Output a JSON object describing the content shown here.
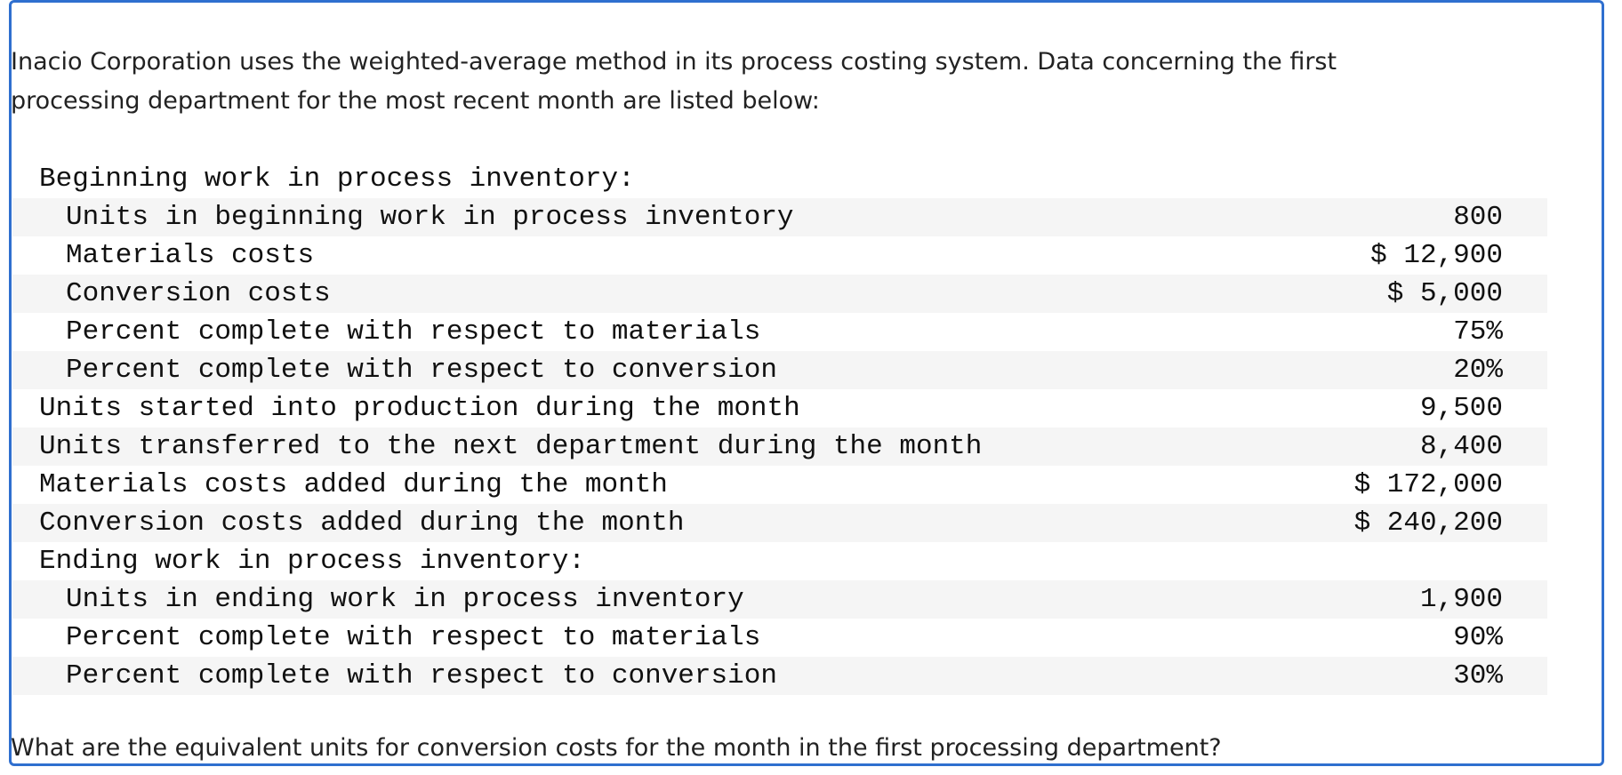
{
  "intro": "Inacio Corporation uses the weighted-average method in its process costing system. Data concerning the first processing department for the most recent month are listed below:",
  "table": [
    {
      "heading": "Beginning work in process inventory:",
      "rows": [
        {
          "label": "Units in beginning work in process inventory",
          "value": "800"
        },
        {
          "label": "Materials costs",
          "value": "$ 12,900"
        },
        {
          "label": "Conversion costs",
          "value": "$ 5,000"
        },
        {
          "label": "Percent complete with respect to materials",
          "value": "75%"
        },
        {
          "label": "Percent complete with respect to conversion",
          "value": "20%"
        }
      ]
    },
    {
      "label": "Units started into production during the month",
      "value": "9,500"
    },
    {
      "label": "Units transferred to the next department during the month",
      "value": "8,400"
    },
    {
      "label": "Materials costs added during the month",
      "value": "$ 172,000"
    },
    {
      "label": "Conversion costs added during the month",
      "value": "$ 240,200"
    },
    {
      "heading": "Ending work in process inventory:",
      "rows": [
        {
          "label": "Units in ending work in process inventory",
          "value": "1,900"
        },
        {
          "label": "Percent complete with respect to materials",
          "value": "90%"
        },
        {
          "label": "Percent complete with respect to conversion",
          "value": "30%"
        }
      ]
    }
  ],
  "question": "What are the equivalent units for conversion costs for the month in the first processing department?"
}
